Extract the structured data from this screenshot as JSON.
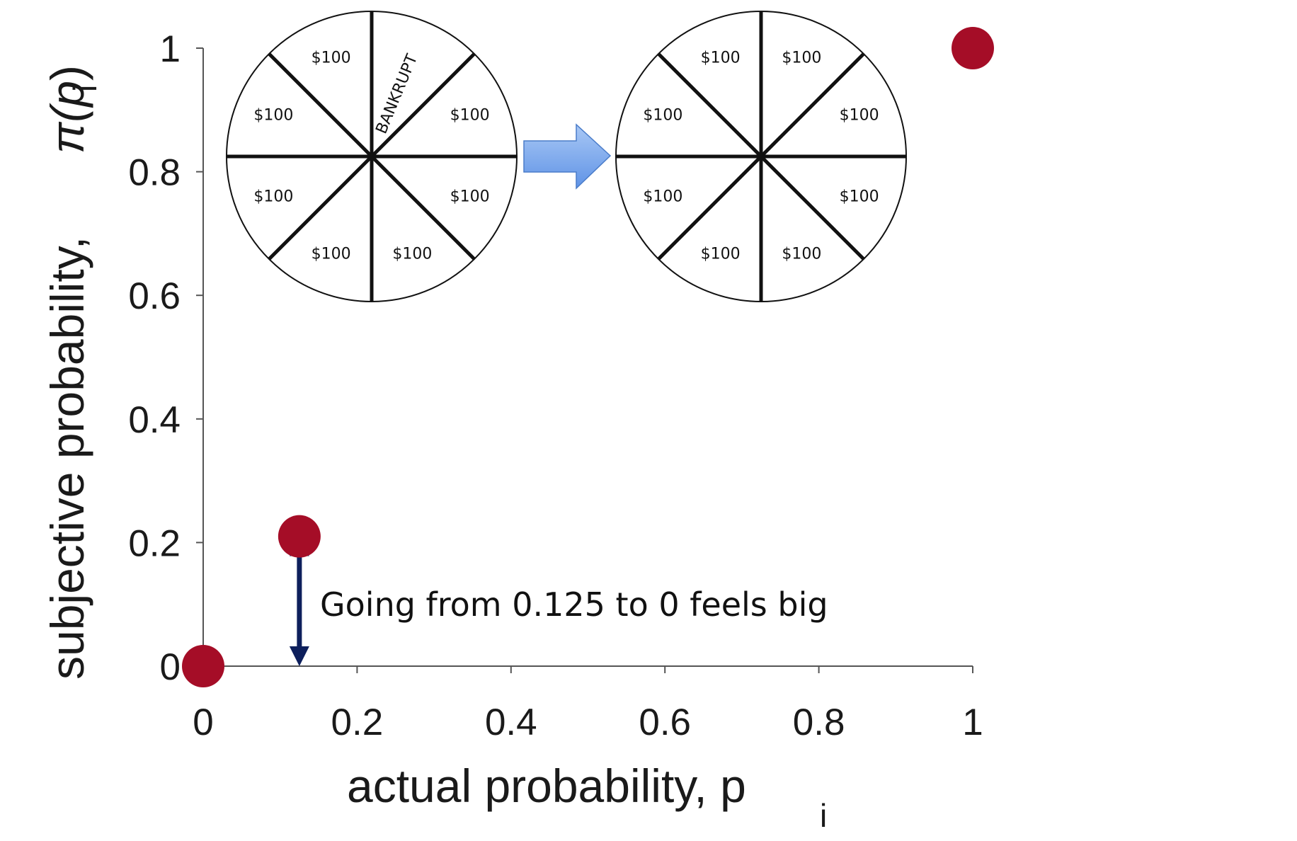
{
  "chart_data": {
    "type": "scatter",
    "xlabel": "actual probability, p",
    "xlabel_sub": "i",
    "ylabel": "subjective probability,",
    "ylabel_symbol": "π(p",
    "ylabel_sub": "i",
    "ylabel_close": ")",
    "xlim": [
      0,
      1
    ],
    "ylim": [
      0,
      1
    ],
    "x_ticks": [
      "0",
      "0.2",
      "0.4",
      "0.6",
      "0.8",
      "1"
    ],
    "y_ticks": [
      "0",
      "0.2",
      "0.4",
      "0.6",
      "0.8",
      "1"
    ],
    "points": [
      {
        "x": 0,
        "y": 0
      },
      {
        "x": 0.125,
        "y": 0.21
      },
      {
        "x": 1,
        "y": 1
      }
    ],
    "point_color": "#a50d27",
    "annotation": {
      "text": "Going from 0.125 to 0 feels big",
      "arrow_x": 0.125,
      "arrow_from": 0,
      "arrow_to": 0.21,
      "arrow_color": "#0d1f5c"
    },
    "wheels": [
      {
        "segments": [
          "$100",
          "BANKRUPT",
          "$100",
          "$100",
          "$100",
          "$100",
          "$100",
          "$100"
        ]
      },
      {
        "segments": [
          "$100",
          "$100",
          "$100",
          "$100",
          "$100",
          "$100",
          "$100",
          "$100"
        ]
      }
    ],
    "transition_arrow_color": "#7aaaf0"
  }
}
